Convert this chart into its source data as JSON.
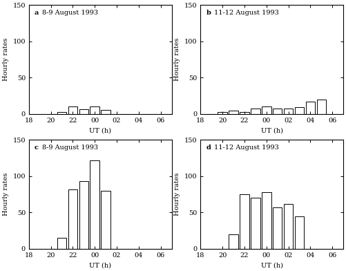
{
  "panels": [
    {
      "label": "a",
      "title": "8-9 August 1993",
      "bars": {
        "21": 3,
        "22": 10,
        "23": 6,
        "24": 10,
        "25": 5
      },
      "ylim": [
        0,
        150
      ],
      "yticks": [
        0,
        50,
        100,
        150
      ]
    },
    {
      "label": "b",
      "title": "11-12 August 1993",
      "bars": {
        "20": 3,
        "21": 4,
        "22": 3,
        "23": 7,
        "24": 10,
        "25": 7,
        "26": 7,
        "27": 9,
        "28": 17,
        "29": 20
      },
      "ylim": [
        0,
        150
      ],
      "yticks": [
        0,
        50,
        100,
        150
      ]
    },
    {
      "label": "c",
      "title": "8-9 August 1993",
      "bars": {
        "21": 15,
        "22": 82,
        "23": 93,
        "24": 122,
        "25": 80
      },
      "ylim": [
        0,
        150
      ],
      "yticks": [
        0,
        50,
        100,
        150
      ]
    },
    {
      "label": "d",
      "title": "11-12 August 1993",
      "bars": {
        "21": 20,
        "22": 75,
        "23": 70,
        "24": 78,
        "25": 57,
        "26": 62,
        "27": 45
      },
      "ylim": [
        0,
        150
      ],
      "yticks": [
        0,
        50,
        100,
        150
      ]
    }
  ],
  "xticks_positions": [
    18,
    20,
    22,
    24,
    26,
    28,
    30
  ],
  "xticks_labels": [
    "18",
    "20",
    "22",
    "00",
    "02",
    "04",
    "06"
  ],
  "xlabel": "UT (h)",
  "ylabel": "Hourly rates",
  "bar_color": "white",
  "bar_edgecolor": "black",
  "background_color": "white",
  "xlim": [
    18,
    31
  ],
  "bar_width": 0.85,
  "title_fontsize": 7,
  "tick_fontsize": 7,
  "label_fontsize": 7,
  "ylabel_fontsize": 7,
  "xlabel_fontsize": 7
}
